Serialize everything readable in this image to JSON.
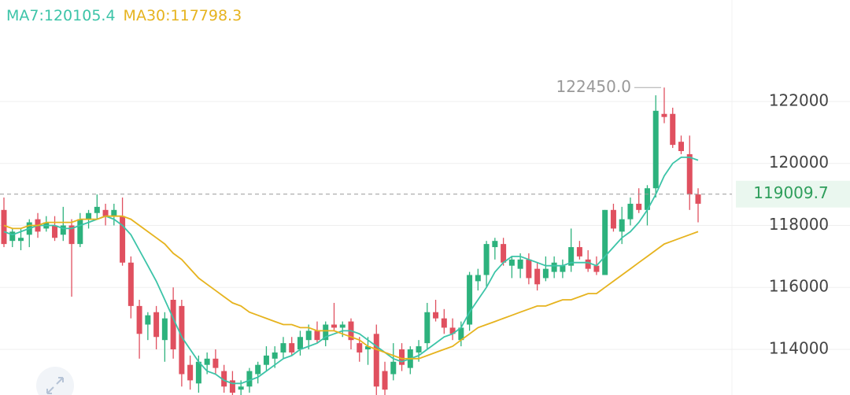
{
  "chart_data": {
    "type": "candlestick",
    "ylim": [
      112527,
      125276
    ],
    "yticks": [
      114000,
      116000,
      118000,
      120000,
      122000
    ],
    "grid": true,
    "up_color": "#2db27d",
    "down_color": "#e0505f",
    "open": [
      118500,
      117500,
      117500,
      117700,
      118200,
      117900,
      118000,
      117700,
      118000,
      117400,
      118200,
      118400,
      118500,
      118300,
      118300,
      116800,
      115400,
      114800,
      115200,
      114300,
      115600,
      115400,
      113500,
      112900,
      113500,
      113700,
      113300,
      113000,
      112700,
      112800,
      113200,
      113500,
      113700,
      113900,
      114200,
      114000,
      114300,
      114600,
      114300,
      114800,
      114700,
      114900,
      114200,
      114000,
      114500,
      113300,
      113200,
      114000,
      113400,
      113900,
      114200,
      115200,
      115000,
      114700,
      114300,
      114800,
      116200,
      116400,
      117300,
      117400,
      116700,
      116600,
      116900,
      116600,
      116300,
      116500,
      116500,
      116700,
      117300,
      116900,
      116700,
      116400,
      118500,
      117800,
      118200,
      118700,
      118500,
      119200,
      121600,
      121600,
      120700,
      120300,
      119000
    ],
    "high": [
      118900,
      117900,
      117900,
      118200,
      118400,
      118300,
      118300,
      118600,
      118200,
      118400,
      118500,
      119000,
      118700,
      118700,
      118900,
      117000,
      115600,
      115200,
      115400,
      115200,
      116000,
      115600,
      113800,
      113800,
      113900,
      114000,
      113500,
      113300,
      113000,
      113400,
      113600,
      114100,
      114100,
      114400,
      114400,
      114600,
      114800,
      114900,
      114900,
      115500,
      114900,
      115000,
      114400,
      114400,
      114800,
      113600,
      114200,
      114200,
      114100,
      114300,
      115500,
      115600,
      115300,
      115000,
      114900,
      116500,
      116600,
      117500,
      117600,
      117600,
      117000,
      117100,
      117100,
      116800,
      117000,
      117000,
      116900,
      117900,
      117500,
      117200,
      117000,
      118500,
      118700,
      118600,
      118900,
      119200,
      119300,
      122200,
      122450,
      121800,
      120900,
      120900,
      119200
    ],
    "low": [
      117300,
      117300,
      117200,
      117300,
      117600,
      117800,
      117500,
      117500,
      115700,
      117300,
      117900,
      118200,
      118000,
      118000,
      116700,
      115000,
      113700,
      114300,
      114000,
      113600,
      113700,
      112800,
      112700,
      112600,
      113200,
      113200,
      112600,
      112400,
      112300,
      112600,
      112900,
      113300,
      113400,
      113700,
      113800,
      113800,
      114000,
      114200,
      114100,
      114600,
      114400,
      114000,
      113600,
      113500,
      112500,
      112400,
      113000,
      113300,
      113200,
      113600,
      114000,
      114900,
      114500,
      114300,
      114100,
      114600,
      115900,
      116000,
      116900,
      116700,
      116300,
      116300,
      116100,
      115900,
      116200,
      116300,
      116300,
      116500,
      116900,
      116500,
      116400,
      116400,
      117800,
      117400,
      118000,
      118400,
      118000,
      118900,
      121300,
      120500,
      120300,
      118500,
      118100
    ],
    "close": [
      117400,
      117800,
      117600,
      118100,
      117800,
      118100,
      117600,
      118000,
      117400,
      118200,
      118400,
      118600,
      118300,
      118500,
      116800,
      115400,
      114500,
      115100,
      114400,
      115000,
      114000,
      113200,
      113000,
      113600,
      113700,
      113400,
      112800,
      112600,
      112800,
      113300,
      113500,
      113800,
      113900,
      114200,
      113900,
      114400,
      114600,
      114300,
      114800,
      114700,
      114800,
      114300,
      113900,
      114100,
      112800,
      112700,
      113600,
      113500,
      114000,
      114100,
      115200,
      115000,
      114700,
      114500,
      114700,
      116400,
      116400,
      117400,
      117500,
      116800,
      116900,
      116900,
      116300,
      116100,
      116600,
      116800,
      116700,
      117300,
      117000,
      116600,
      116500,
      118500,
      117900,
      118200,
      118700,
      118500,
      119200,
      121700,
      121500,
      120600,
      120400,
      119000,
      118700
    ],
    "series": [
      {
        "name": "MA7:120105.4",
        "color": "#3cc4a8",
        "values": [
          117800,
          117700,
          117800,
          117900,
          118000,
          118000,
          118000,
          117900,
          117900,
          118000,
          118100,
          118200,
          118300,
          118200,
          118000,
          117700,
          117200,
          116700,
          116200,
          115600,
          115000,
          114400,
          114000,
          113600,
          113300,
          113200,
          113000,
          112900,
          112900,
          113000,
          113100,
          113300,
          113500,
          113700,
          113800,
          114000,
          114100,
          114200,
          114400,
          114500,
          114600,
          114600,
          114500,
          114300,
          114100,
          113900,
          113700,
          113600,
          113700,
          113800,
          114000,
          114200,
          114400,
          114500,
          114700,
          115200,
          115600,
          116000,
          116500,
          116800,
          117000,
          117000,
          116900,
          116800,
          116700,
          116700,
          116700,
          116800,
          116800,
          116800,
          116700,
          117000,
          117300,
          117600,
          117800,
          118100,
          118500,
          119000,
          119600,
          120000,
          120200,
          120200,
          120105.4
        ]
      },
      {
        "name": "MA30:117798.3",
        "color": "#e6b31e",
        "values": [
          118000,
          117900,
          117900,
          118000,
          118000,
          118100,
          118100,
          118100,
          118100,
          118200,
          118200,
          118200,
          118300,
          118300,
          118300,
          118200,
          118000,
          117800,
          117600,
          117400,
          117100,
          116900,
          116600,
          116300,
          116100,
          115900,
          115700,
          115500,
          115400,
          115200,
          115100,
          115000,
          114900,
          114800,
          114800,
          114700,
          114700,
          114600,
          114600,
          114600,
          114500,
          114400,
          114300,
          114100,
          114000,
          113900,
          113800,
          113700,
          113700,
          113700,
          113800,
          113900,
          114000,
          114100,
          114300,
          114500,
          114700,
          114800,
          114900,
          115000,
          115100,
          115200,
          115300,
          115400,
          115400,
          115500,
          115600,
          115600,
          115700,
          115800,
          115800,
          116000,
          116200,
          116400,
          116600,
          116800,
          117000,
          117200,
          117400,
          117500,
          117600,
          117700,
          117798.3
        ]
      }
    ],
    "max_marker": {
      "value": 122450,
      "label": "122450.0"
    },
    "last_price": {
      "value": 119009.7,
      "label": "119009.7"
    }
  }
}
